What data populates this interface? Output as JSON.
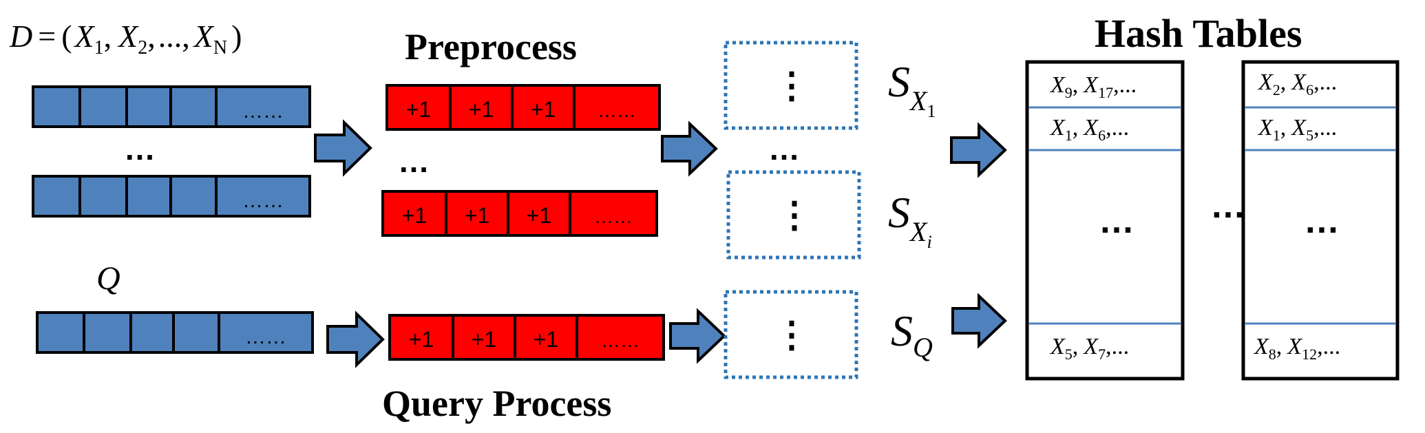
{
  "colors": {
    "blue_cell": "#4f81bd",
    "red_cell": "#ff0000",
    "arrow": "#4f81bd",
    "dotted_box": "#2e75b6",
    "table_line": "#4f81bd",
    "border": "#000000"
  },
  "dataset": {
    "formula": "D = (X1, X2, ..., XN)",
    "d": "D",
    "eq": "=",
    "open_paren": "(",
    "x": "X",
    "sub1": "1",
    "sub2": "2",
    "comma": ",",
    "ellipsis": "...",
    "subN": "N",
    "close_paren": ")"
  },
  "query_label": "Q",
  "cell_ellipsis": "……",
  "plus_one": "+1",
  "row_gap_dots": "…",
  "vertical_dots": "⋮",
  "titles": {
    "preprocess": "Preprocess",
    "query_process": "Query Process",
    "hash_tables": "Hash Tables"
  },
  "signatures": {
    "s": "S",
    "x": "X",
    "sub_1": "1",
    "sub_i": "i",
    "sub_q": "Q",
    "labels": [
      "S_X1",
      "S_Xi",
      "S_Q"
    ]
  },
  "table1": {
    "rows": [
      {
        "a": "9",
        "b": "17",
        "text": "X9, X17,..."
      },
      {
        "a": "1",
        "b": "6",
        "text": "X1, X6,..."
      },
      {
        "a": "5",
        "b": "7",
        "text": "X5, X7,..."
      }
    ],
    "middle": "…"
  },
  "table2": {
    "rows": [
      {
        "a": "2",
        "b": "6",
        "text": "X2, X6,..."
      },
      {
        "a": "1",
        "b": "5",
        "text": "X1, X5,..."
      },
      {
        "a": "8",
        "b": "12",
        "text": "X8, X12,..."
      }
    ],
    "middle": "…"
  },
  "tables_gap": "…"
}
